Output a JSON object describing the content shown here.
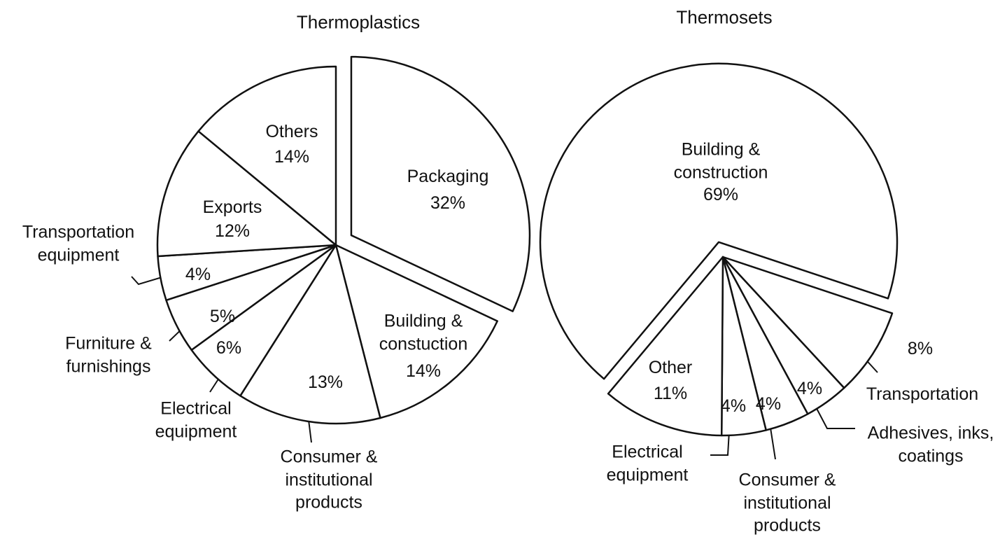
{
  "chart_data": [
    {
      "type": "pie",
      "title": "Thermoplastics",
      "color": "#ffffff",
      "categories": [
        "Packaging",
        "Building & constuction",
        "Consumer & institutional products",
        "Electrical equipment",
        "Furniture & furnishings",
        "Transportation equipment",
        "Exports",
        "Others"
      ],
      "values": [
        32,
        14,
        13,
        6,
        5,
        4,
        12,
        14
      ],
      "value_labels": [
        "32%",
        "14%",
        "13%",
        "6%",
        "5%",
        "4%",
        "12%",
        "14%"
      ]
    },
    {
      "type": "pie",
      "title": "Thermosets",
      "color": "#ffffff",
      "categories": [
        "Building & construction",
        "Transportation",
        "Adhesives, inks, coatings",
        "Consumer & institutional products",
        "Electrical equipment",
        "Other"
      ],
      "values": [
        69,
        8,
        4,
        4,
        4,
        11
      ],
      "value_labels": [
        "69%",
        "8%",
        "4%",
        "4%",
        "4%",
        "11%"
      ]
    }
  ]
}
